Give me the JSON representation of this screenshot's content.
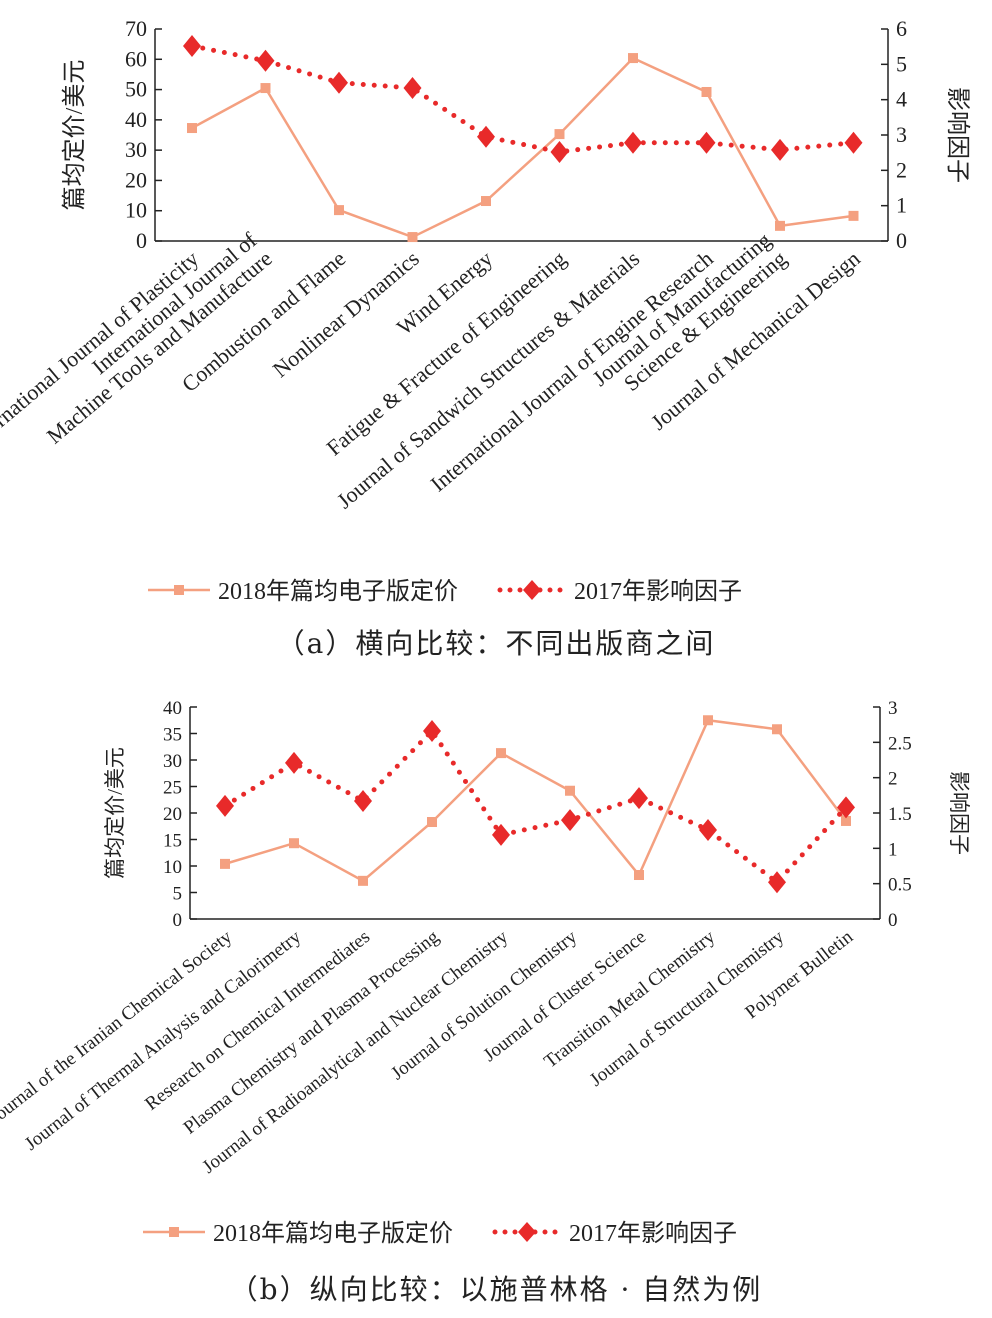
{
  "colors": {
    "price": "#f4a080",
    "impact": "#e82a2a",
    "axis": "#222222"
  },
  "chart_data": [
    {
      "type": "line",
      "caption": "（a）横向比较：不同出版商之间",
      "categories": [
        "International Journal of Plasticity",
        "International Journal of\nMachine Tools and Manufacture",
        "Combustion and Flame",
        "Nonlinear Dynamics",
        "Wind Energy",
        "Fatigue & Fracture of  Engineering",
        "Journal of Sandwich Structures & Materials",
        "International Journal of Engine Research",
        "Journal of Manufacturing\nScience & Engineering",
        "Journal of Mechanical Design"
      ],
      "ylabel": "篇均定价/美元",
      "y2label": "影响因子",
      "ylim": [
        0,
        70
      ],
      "yticks": [
        0,
        10,
        20,
        30,
        40,
        50,
        60,
        70
      ],
      "y2lim": [
        0,
        6
      ],
      "y2ticks": [
        0,
        1,
        2,
        3,
        4,
        5,
        6
      ],
      "legend_position": "bottom",
      "grid": false,
      "series": [
        {
          "name": "2018年篇均电子版定价",
          "axis": "left",
          "marker": "square",
          "style": "solid",
          "values": [
            37.3,
            50.5,
            10.2,
            1.3,
            13.2,
            35.3,
            60.4,
            49.2,
            5.0,
            8.3
          ]
        },
        {
          "name": "2017年影响因子",
          "axis": "right",
          "marker": "diamond",
          "style": "dotted",
          "values": [
            5.52,
            5.1,
            4.48,
            4.33,
            2.95,
            2.52,
            2.78,
            2.78,
            2.58,
            2.78
          ]
        }
      ]
    },
    {
      "type": "line",
      "caption": "（b）纵向比较：以施普林格 · 自然为例",
      "categories": [
        "Journal of the Iranian Chemical Society",
        "Journal of Thermal Analysis and Calorimetry",
        "Research on Chemical Intermediates",
        "Plasma Chemistry and Plasma Processing",
        "Journal of Radioanalytical and Nuclear Chemistry",
        "Journal of Solution Chemistry",
        "Journal of Cluster Science",
        "Transition Metal Chemistry",
        "Journal of Structural Chemistry",
        "Polymer Bulletin"
      ],
      "ylabel": "篇均定价/美元",
      "y2label": "影响因子",
      "ylim": [
        0,
        40
      ],
      "yticks": [
        0,
        5,
        10,
        15,
        20,
        25,
        30,
        35,
        40
      ],
      "y2lim": [
        0,
        3
      ],
      "y2ticks": [
        0,
        0.5,
        1,
        1.5,
        2,
        2.5,
        3
      ],
      "legend_position": "bottom",
      "grid": false,
      "series": [
        {
          "name": "2018年篇均电子版定价",
          "axis": "left",
          "marker": "square",
          "style": "solid",
          "values": [
            10.4,
            14.3,
            7.2,
            18.3,
            31.3,
            24.2,
            8.3,
            37.5,
            35.8,
            18.5
          ]
        },
        {
          "name": "2017年影响因子",
          "axis": "right",
          "marker": "diamond",
          "style": "dotted",
          "values": [
            1.6,
            2.21,
            1.67,
            2.66,
            1.19,
            1.4,
            1.71,
            1.26,
            0.52,
            1.58
          ]
        }
      ]
    }
  ]
}
